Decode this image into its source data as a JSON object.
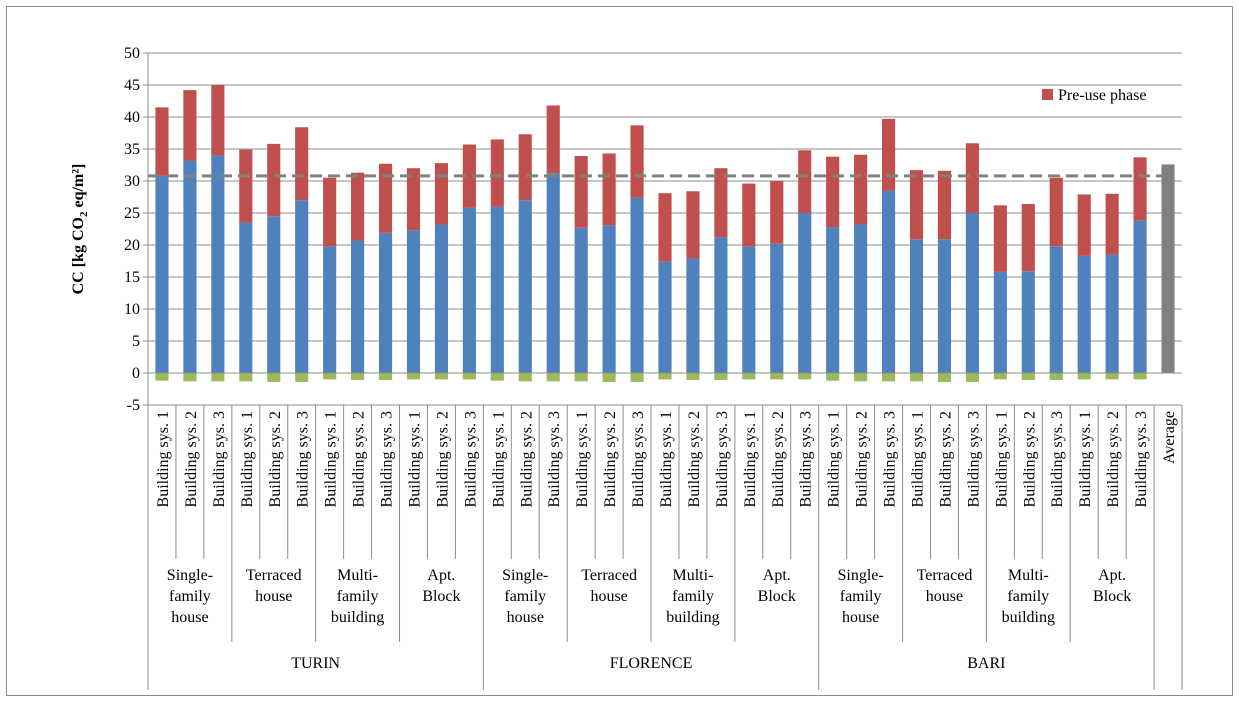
{
  "chart_data": {
    "type": "bar",
    "stacked": true,
    "ylabel_parts": [
      "CC [kg CO",
      "2",
      " eq/m²]"
    ],
    "ylim": [
      -5,
      50
    ],
    "yticks": [
      -5,
      0,
      5,
      10,
      15,
      20,
      25,
      30,
      35,
      40,
      45,
      50
    ],
    "grid": true,
    "legend_placement": "top-right",
    "legend": [
      {
        "name": "Pre-use phase",
        "color": "#c0504d"
      }
    ],
    "reference_line": {
      "value": 30.8,
      "color": "#808080",
      "style": "dashed"
    },
    "categories": [
      "Building sys. 1",
      "Building sys. 2",
      "Building sys. 3",
      "Building sys. 1",
      "Building sys. 2",
      "Building sys. 3",
      "Building sys. 1",
      "Building sys. 2",
      "Building sys. 3",
      "Building sys. 1",
      "Building sys. 2",
      "Building sys. 3",
      "Building sys. 1",
      "Building sys. 2",
      "Building sys. 3",
      "Building sys. 1",
      "Building sys. 2",
      "Building sys. 3",
      "Building sys. 1",
      "Building sys. 2",
      "Building sys. 3",
      "Building sys. 1",
      "Building sys. 2",
      "Building sys. 3",
      "Building sys. 1",
      "Building sys. 2",
      "Building sys. 3",
      "Building sys. 1",
      "Building sys. 2",
      "Building sys. 3",
      "Building sys. 1",
      "Building sys. 2",
      "Building sys. 3",
      "Building sys. 1",
      "Building sys. 2",
      "Building sys. 3",
      "Average"
    ],
    "building_types": [
      [
        "Single-",
        "family",
        "house"
      ],
      [
        "Terraced",
        "house"
      ],
      [
        "Multi-",
        "family",
        "building"
      ],
      [
        "Apt.",
        "Block"
      ]
    ],
    "cities": [
      "TURIN",
      "FLORENCE",
      "BARI"
    ],
    "series": [
      {
        "name": "",
        "color": "#4f81bd",
        "values": [
          30.8,
          33.2,
          34,
          23.5,
          24.5,
          27,
          19.8,
          20.7,
          21.9,
          22.3,
          23.2,
          25.8,
          26,
          27,
          31.2,
          22.7,
          23.1,
          27.4,
          17.4,
          17.9,
          21.2,
          19.8,
          20.2,
          25,
          22.8,
          23.2,
          28.5,
          20.9,
          20.9,
          25,
          15.8,
          15.9,
          19.8,
          18.3,
          18.5,
          23.8,
          0
        ]
      },
      {
        "name": "Pre-use phase",
        "color": "#c0504d",
        "values": [
          10.7,
          11,
          11,
          11.4,
          11.3,
          11.4,
          10.7,
          10.6,
          10.8,
          9.7,
          9.6,
          9.9,
          10.5,
          10.3,
          10.6,
          11.2,
          11.2,
          11.3,
          10.7,
          10.5,
          10.8,
          9.8,
          9.8,
          9.8,
          11,
          10.9,
          11.2,
          10.8,
          10.7,
          10.9,
          10.4,
          10.5,
          10.7,
          9.6,
          9.5,
          9.9,
          0
        ]
      },
      {
        "name": "",
        "color": "#9bbb59",
        "values": [
          -1.2,
          -1.3,
          -1.3,
          -1.3,
          -1.4,
          -1.4,
          -1,
          -1.1,
          -1.1,
          -1,
          -1,
          -1,
          -1.2,
          -1.3,
          -1.3,
          -1.3,
          -1.4,
          -1.4,
          -1,
          -1.1,
          -1.1,
          -1,
          -1,
          -1,
          -1.2,
          -1.3,
          -1.3,
          -1.3,
          -1.4,
          -1.4,
          -1,
          -1.1,
          -1.1,
          -1,
          -1,
          -1,
          0
        ]
      },
      {
        "name": "",
        "color": "#808080",
        "values": [
          0,
          0,
          0,
          0,
          0,
          0,
          0,
          0,
          0,
          0,
          0,
          0,
          0,
          0,
          0,
          0,
          0,
          0,
          0,
          0,
          0,
          0,
          0,
          0,
          0,
          0,
          0,
          0,
          0,
          0,
          0,
          0,
          0,
          0,
          0,
          0,
          32.6
        ]
      }
    ]
  }
}
